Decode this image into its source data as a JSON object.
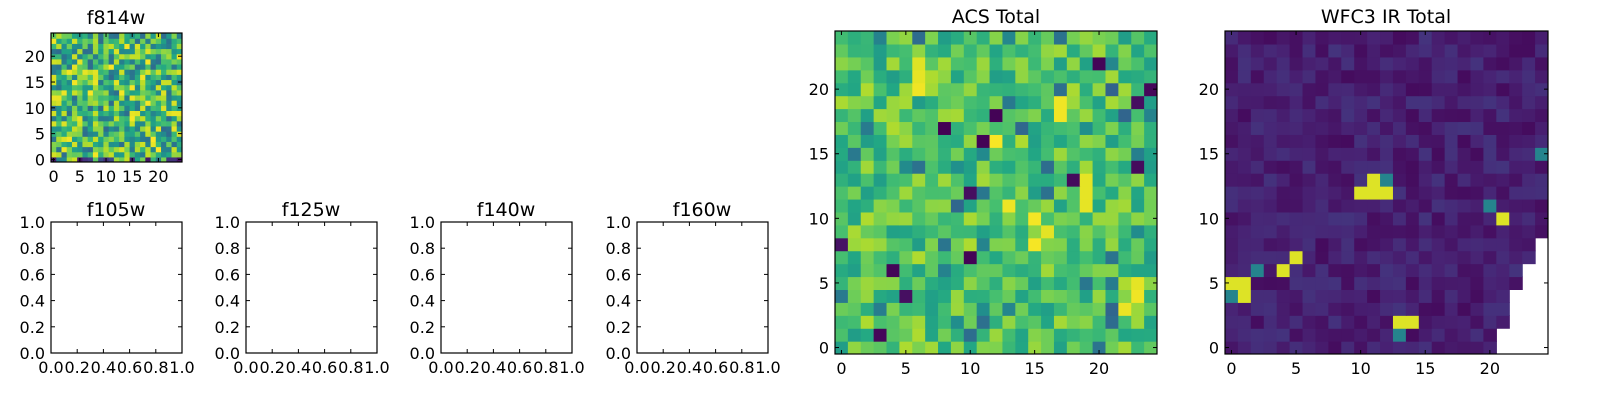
{
  "chart_data": [
    {
      "id": "f814w",
      "type": "heatmap",
      "title": "f814w",
      "xlabel": "",
      "ylabel": "",
      "grid_size": [
        25,
        25
      ],
      "xlim": [
        0,
        25
      ],
      "ylim": [
        0,
        25
      ],
      "xticks": [
        0,
        5,
        10,
        15,
        20
      ],
      "yticks": [
        0,
        5,
        10,
        15,
        20
      ],
      "colormap": "viridis",
      "grid": false,
      "legend": "none",
      "values_note": ""
    },
    {
      "id": "f105w",
      "type": "line",
      "title": "f105w",
      "xlim": [
        0,
        1
      ],
      "ylim": [
        0,
        1
      ],
      "xticks": [
        "0.0",
        "0.2",
        "0.4",
        "0.6",
        "0.8",
        "1.0"
      ],
      "yticks": [
        "0.0",
        "0.2",
        "0.4",
        "0.6",
        "0.8",
        "1.0"
      ],
      "series": []
    },
    {
      "id": "f125w",
      "type": "line",
      "title": "f125w",
      "xlim": [
        0,
        1
      ],
      "ylim": [
        0,
        1
      ],
      "xticks": [
        "0.0",
        "0.2",
        "0.4",
        "0.6",
        "0.8",
        "1.0"
      ],
      "yticks": [
        "0.0",
        "0.2",
        "0.4",
        "0.6",
        "0.8",
        "1.0"
      ],
      "series": []
    },
    {
      "id": "f140w",
      "type": "line",
      "title": "f140w",
      "xlim": [
        0,
        1
      ],
      "ylim": [
        0,
        1
      ],
      "xticks": [
        "0.0",
        "0.2",
        "0.4",
        "0.6",
        "0.8",
        "1.0"
      ],
      "yticks": [
        "0.0",
        "0.2",
        "0.4",
        "0.6",
        "0.8",
        "1.0"
      ],
      "series": []
    },
    {
      "id": "f160w",
      "type": "line",
      "title": "f160w",
      "xlim": [
        0,
        1
      ],
      "ylim": [
        0,
        1
      ],
      "xticks": [
        "0.0",
        "0.2",
        "0.4",
        "0.6",
        "0.8",
        "1.0"
      ],
      "yticks": [
        "0.0",
        "0.2",
        "0.4",
        "0.6",
        "0.8",
        "1.0"
      ],
      "series": []
    },
    {
      "id": "acs_total",
      "type": "heatmap",
      "title": "ACS Total",
      "grid_size": [
        25,
        25
      ],
      "xlim": [
        0,
        25
      ],
      "ylim": [
        0,
        25
      ],
      "xticks": [
        0,
        5,
        10,
        15,
        20
      ],
      "yticks": [
        0,
        5,
        10,
        15,
        20
      ],
      "colormap": "viridis",
      "low_cells": [
        [
          16,
          11
        ],
        [
          17,
          8
        ],
        [
          18,
          12
        ],
        [
          19,
          23
        ],
        [
          20,
          24
        ],
        [
          13,
          18
        ],
        [
          12,
          10
        ],
        [
          6,
          4
        ],
        [
          14,
          23
        ],
        [
          22,
          20
        ],
        [
          1,
          3
        ],
        [
          4,
          5
        ],
        [
          7,
          10
        ],
        [
          8,
          0
        ]
      ],
      "high_cells": [
        [
          8,
          15
        ],
        [
          9,
          16
        ],
        [
          10,
          15
        ],
        [
          11,
          13
        ],
        [
          11,
          19
        ],
        [
          12,
          19
        ],
        [
          13,
          19
        ],
        [
          16,
          12
        ],
        [
          18,
          17
        ],
        [
          19,
          17
        ],
        [
          20,
          6
        ],
        [
          21,
          6
        ],
        [
          22,
          6
        ],
        [
          5,
          23
        ],
        [
          4,
          23
        ],
        [
          3,
          22
        ]
      ]
    },
    {
      "id": "wfc3_ir_total",
      "type": "heatmap",
      "title": "WFC3 IR Total",
      "grid_size": [
        25,
        25
      ],
      "xlim": [
        0,
        25
      ],
      "ylim": [
        0,
        25
      ],
      "xticks": [
        0,
        5,
        10,
        15,
        20
      ],
      "yticks": [
        0,
        5,
        10,
        15,
        20
      ],
      "colormap": "viridis",
      "bright_cells": [
        [
          12,
          11
        ],
        [
          12,
          12
        ],
        [
          13,
          12
        ],
        [
          13,
          11
        ],
        [
          12,
          10
        ],
        [
          11,
          20
        ],
        [
          10,
          21
        ],
        [
          5,
          0
        ],
        [
          4,
          0
        ],
        [
          4,
          1
        ],
        [
          5,
          1
        ],
        [
          6,
          2
        ],
        [
          7,
          5
        ],
        [
          6,
          4
        ],
        [
          1,
          13
        ],
        [
          2,
          13
        ],
        [
          2,
          14
        ],
        [
          15,
          24
        ]
      ],
      "blank_cells_note": "lower-right region without data"
    }
  ]
}
